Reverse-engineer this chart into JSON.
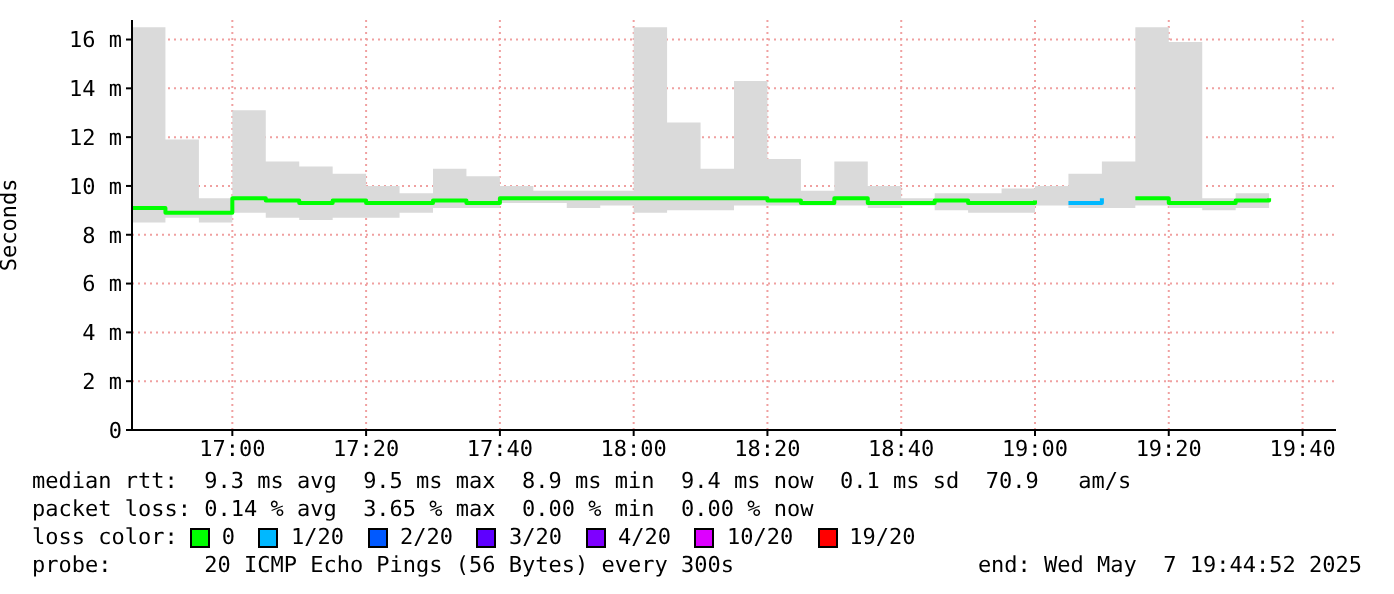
{
  "chart_data": {
    "type": "step",
    "ylabel": "Seconds",
    "legend_title": "loss color:",
    "legend": "bottom",
    "grid": true,
    "marker": "none",
    "x": [
      16.75,
      16.8333,
      16.9167,
      17,
      17.0833,
      17.1667,
      17.25,
      17.3333,
      17.4167,
      17.5,
      17.5833,
      17.6667,
      17.75,
      17.8333,
      17.9167,
      18,
      18.0833,
      18.1667,
      18.25,
      18.3333,
      18.4167,
      18.5,
      18.5833,
      18.6667,
      18.75,
      18.8333,
      18.9167,
      19,
      19.0833,
      19.1667,
      19.25,
      19.3333,
      19.4167,
      19.5,
      19.5833
    ],
    "xlim": [
      16.75,
      19.75
    ],
    "xticks": [
      {
        "value": 17,
        "label": "17:00"
      },
      {
        "value": 17.3333,
        "label": "17:20"
      },
      {
        "value": 17.6667,
        "label": "17:40"
      },
      {
        "value": 18,
        "label": "18:00"
      },
      {
        "value": 18.3333,
        "label": "18:20"
      },
      {
        "value": 18.6667,
        "label": "18:40"
      },
      {
        "value": 19,
        "label": "19:00"
      },
      {
        "value": 19.3333,
        "label": "19:20"
      },
      {
        "value": 19.6667,
        "label": "19:40"
      }
    ],
    "ylim": [
      0,
      16.8
    ],
    "yticks": [
      0,
      {
        "value": 2,
        "label": "2 m"
      },
      {
        "value": 4,
        "label": "4 m"
      },
      {
        "value": 6,
        "label": "6 m"
      },
      {
        "value": 8,
        "label": "8 m"
      },
      {
        "value": 10,
        "label": "10 m"
      },
      {
        "value": 12,
        "label": "12 m"
      },
      {
        "value": 14,
        "label": "14 m"
      },
      {
        "value": 16,
        "label": "16 m"
      }
    ],
    "series": [
      {
        "name": "0",
        "color": "#00ff00",
        "values": [
          9.1,
          8.9,
          8.9,
          9.5,
          9.4,
          9.3,
          9.4,
          9.3,
          9.3,
          9.4,
          9.3,
          9.5,
          9.5,
          9.5,
          9.5,
          9.5,
          9.5,
          9.5,
          9.5,
          9.4,
          9.3,
          9.5,
          9.3,
          9.3,
          9.4,
          9.3,
          9.3,
          9.4,
          null,
          null,
          9.5,
          9.3,
          9.3,
          9.4,
          9.5
        ],
        "lower": [
          8.5,
          8.7,
          8.5,
          8.9,
          8.7,
          8.6,
          8.7,
          8.7,
          8.9,
          9.1,
          9.1,
          9.3,
          9.3,
          9.1,
          9.2,
          8.9,
          9.0,
          9.0,
          9.2,
          9.2,
          9.2,
          9.2,
          9.1,
          9.2,
          9.0,
          8.9,
          8.9,
          9.2,
          9.1,
          9.1,
          9.2,
          9.1,
          9.0,
          9.1,
          9.1
        ],
        "upper": [
          16.5,
          11.9,
          9.5,
          13.1,
          11.0,
          10.8,
          10.5,
          10.0,
          9.7,
          10.7,
          10.4,
          10.0,
          9.8,
          9.8,
          9.8,
          16.5,
          12.6,
          10.7,
          14.3,
          11.1,
          9.8,
          11.0,
          10.0,
          9.5,
          9.7,
          9.7,
          9.9,
          10.0,
          10.5,
          11.0,
          16.5,
          15.9,
          9.5,
          9.7,
          9.8
        ]
      },
      {
        "name": "1/20",
        "color": "#00b8ff",
        "values": [
          null,
          null,
          null,
          null,
          null,
          null,
          null,
          null,
          null,
          null,
          null,
          null,
          null,
          null,
          null,
          null,
          null,
          null,
          null,
          null,
          null,
          null,
          null,
          null,
          null,
          null,
          null,
          null,
          9.3,
          9.5,
          null,
          null,
          null,
          null,
          null
        ]
      },
      {
        "name": "2/20",
        "color": "#0059ff",
        "values": [
          null,
          null,
          null,
          null,
          null,
          null,
          null,
          null,
          null,
          null,
          null,
          null,
          null,
          null,
          null,
          null,
          null,
          null,
          null,
          null,
          null,
          null,
          null,
          null,
          null,
          null,
          null,
          null,
          null,
          null,
          null,
          null,
          null,
          null,
          null
        ]
      },
      {
        "name": "3/20",
        "color": "#5e00ff",
        "values": [
          null,
          null,
          null,
          null,
          null,
          null,
          null,
          null,
          null,
          null,
          null,
          null,
          null,
          null,
          null,
          null,
          null,
          null,
          null,
          null,
          null,
          null,
          null,
          null,
          null,
          null,
          null,
          null,
          null,
          null,
          null,
          null,
          null,
          null,
          null
        ]
      },
      {
        "name": "4/20",
        "color": "#7e00ff",
        "values": [
          null,
          null,
          null,
          null,
          null,
          null,
          null,
          null,
          null,
          null,
          null,
          null,
          null,
          null,
          null,
          null,
          null,
          null,
          null,
          null,
          null,
          null,
          null,
          null,
          null,
          null,
          null,
          null,
          null,
          null,
          null,
          null,
          null,
          null,
          null
        ]
      },
      {
        "name": "10/20",
        "color": "#dd00ff",
        "values": [
          null,
          null,
          null,
          null,
          null,
          null,
          null,
          null,
          null,
          null,
          null,
          null,
          null,
          null,
          null,
          null,
          null,
          null,
          null,
          null,
          null,
          null,
          null,
          null,
          null,
          null,
          null,
          null,
          null,
          null,
          null,
          null,
          null,
          null,
          null
        ]
      },
      {
        "name": "19/20",
        "color": "#ff0000",
        "values": [
          null,
          null,
          null,
          null,
          null,
          null,
          null,
          null,
          null,
          null,
          null,
          null,
          null,
          null,
          null,
          null,
          null,
          null,
          null,
          null,
          null,
          null,
          null,
          null,
          null,
          null,
          null,
          null,
          null,
          null,
          null,
          null,
          null,
          null,
          null
        ]
      }
    ],
    "annotations": [
      "median rtt:  9.3 ms avg  9.5 ms max  8.9 ms min  9.4 ms now  0.1 ms sd  70.9   am/s",
      "packet loss: 0.14 % avg  3.65 % max  0.00 % min  0.00 % now",
      "probe:       20 ICMP Echo Pings (56 Bytes) every 300s",
      "end: Wed May  7 19:44:52 2025"
    ]
  }
}
